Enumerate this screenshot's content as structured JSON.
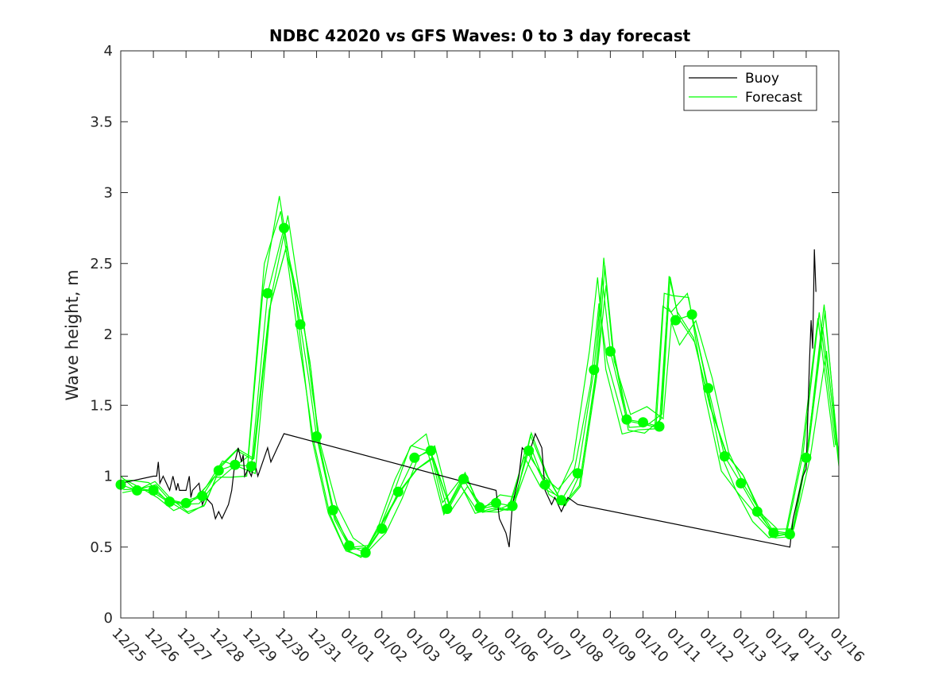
{
  "chart_data": {
    "type": "line",
    "title": "NDBC 42020 vs GFS Waves: 0 to 3 day forecast",
    "xlabel": "",
    "ylabel": "Wave height, m",
    "x_unit": "days since 12/25",
    "xlim": [
      0,
      22
    ],
    "ylim": [
      0,
      4
    ],
    "grid": false,
    "legend_position": "top-right",
    "x_tick_values": [
      0,
      1,
      2,
      3,
      4,
      5,
      6,
      7,
      8,
      9,
      10,
      11,
      12,
      13,
      14,
      15,
      16,
      17,
      18,
      19,
      20,
      21,
      22
    ],
    "x_tick_labels": [
      "12/25",
      "12/26",
      "12/27",
      "12/28",
      "12/29",
      "12/30",
      "12/31",
      "01/01",
      "01/02",
      "01/03",
      "01/04",
      "01/05",
      "01/06",
      "01/07",
      "01/08",
      "01/09",
      "01/10",
      "01/11",
      "01/12",
      "01/13",
      "01/14",
      "01/15",
      "01/16"
    ],
    "y_tick_values": [
      0,
      0.5,
      1,
      1.5,
      2,
      2.5,
      3,
      3.5,
      4
    ],
    "y_tick_labels": [
      "0",
      "0.5",
      "1",
      "1.5",
      "2",
      "2.5",
      "3",
      "3.5",
      "4"
    ],
    "legend": [
      "Buoy",
      "Forecast"
    ],
    "colors": {
      "buoy": "#000000",
      "forecast": "#00ff00",
      "axis": "#262626"
    },
    "series": [
      {
        "name": "Buoy",
        "x": [
          0,
          1,
          1.1,
          1.15,
          1.2,
          1.3,
          1.5,
          1.6,
          1.7,
          1.75,
          1.8,
          2.0,
          2.1,
          2.15,
          2.2,
          2.4,
          2.5,
          2.6,
          2.8,
          2.9,
          3.0,
          3.1,
          3.3,
          3.4,
          3.5,
          3.6,
          3.7,
          3.75,
          3.8,
          3.9,
          4.0,
          4.1,
          4.2,
          4.5,
          4.6,
          4.8,
          5.0,
          11.5,
          11.6,
          11.7,
          11.8,
          11.9,
          12.0,
          12.2,
          12.3,
          12.5,
          12.7,
          12.9,
          13.0,
          13.2,
          13.3,
          13.5,
          13.7,
          14.0,
          20.5,
          20.6,
          20.8,
          20.9,
          21.0,
          21.1,
          21.15,
          21.2,
          21.25,
          21.3
        ],
        "y": [
          0.95,
          1.0,
          1.0,
          1.1,
          0.95,
          1.0,
          0.9,
          1.0,
          0.9,
          0.95,
          0.9,
          0.9,
          1.0,
          0.85,
          0.9,
          0.95,
          0.8,
          0.85,
          0.8,
          0.7,
          0.75,
          0.7,
          0.8,
          0.9,
          1.1,
          1.2,
          1.1,
          1.15,
          1.0,
          1.05,
          1.0,
          1.1,
          1.0,
          1.2,
          1.1,
          1.2,
          1.3,
          0.9,
          0.7,
          0.65,
          0.6,
          0.5,
          0.8,
          1.0,
          1.2,
          1.15,
          1.3,
          1.2,
          0.9,
          0.8,
          0.85,
          0.75,
          0.85,
          0.8,
          0.5,
          0.7,
          0.9,
          1.0,
          1.05,
          1.8,
          2.1,
          1.9,
          2.6,
          2.3
        ]
      },
      {
        "name": "Forecast",
        "x": [
          0,
          0.5,
          1.0,
          1.5,
          2.0,
          2.5,
          3.0,
          3.5,
          4.0,
          4.5,
          5.0,
          5.5,
          5.75,
          6.0,
          6.5,
          7.0,
          7.5,
          8.0,
          8.5,
          9.0,
          9.5,
          10.0,
          10.5,
          11.0,
          11.5,
          12.0,
          12.5,
          13.0,
          13.5,
          14.0,
          14.5,
          14.75,
          15.0,
          15.5,
          16.0,
          16.5,
          16.75,
          17.0,
          17.5,
          18.0,
          18.5,
          19.0,
          19.5,
          20.0,
          20.5,
          21.0,
          21.5,
          22.0
        ],
        "y": [
          0.94,
          0.9,
          0.9,
          0.82,
          0.81,
          0.86,
          1.04,
          1.08,
          1.07,
          2.29,
          2.75,
          2.07,
          1.7,
          1.28,
          0.76,
          0.51,
          0.46,
          0.63,
          0.89,
          1.13,
          1.18,
          0.77,
          0.98,
          0.78,
          0.81,
          0.79,
          1.18,
          0.94,
          0.83,
          1.02,
          1.75,
          2.4,
          1.88,
          1.4,
          1.38,
          1.35,
          2.2,
          2.1,
          2.14,
          1.62,
          1.14,
          0.95,
          0.75,
          0.6,
          0.59,
          1.13,
          2.05,
          1.15
        ]
      }
    ],
    "forecast_markers": {
      "x": [
        0,
        0.5,
        1.0,
        1.5,
        2.0,
        2.5,
        3.0,
        3.5,
        4.0,
        4.5,
        5.0,
        5.5,
        6.0,
        6.5,
        7.0,
        7.5,
        8.0,
        8.5,
        9.0,
        9.5,
        10.0,
        10.5,
        11.0,
        11.5,
        12.0,
        12.5,
        13.0,
        13.5,
        14.0,
        14.5,
        15.0,
        15.5,
        16.0,
        16.5,
        17.0,
        17.5,
        18.0,
        18.5,
        19.0,
        19.5,
        20.0,
        20.5,
        21.0
      ],
      "y": [
        0.94,
        0.9,
        0.9,
        0.82,
        0.81,
        0.86,
        1.04,
        1.08,
        1.07,
        2.29,
        2.75,
        2.07,
        1.28,
        0.76,
        0.51,
        0.46,
        0.63,
        0.89,
        1.13,
        1.18,
        0.77,
        0.98,
        0.78,
        0.81,
        0.79,
        1.18,
        0.94,
        0.83,
        1.02,
        1.75,
        1.88,
        1.4,
        1.38,
        1.35,
        2.1,
        2.14,
        1.62,
        1.14,
        0.95,
        0.75,
        0.6,
        0.59,
        1.13
      ]
    }
  }
}
